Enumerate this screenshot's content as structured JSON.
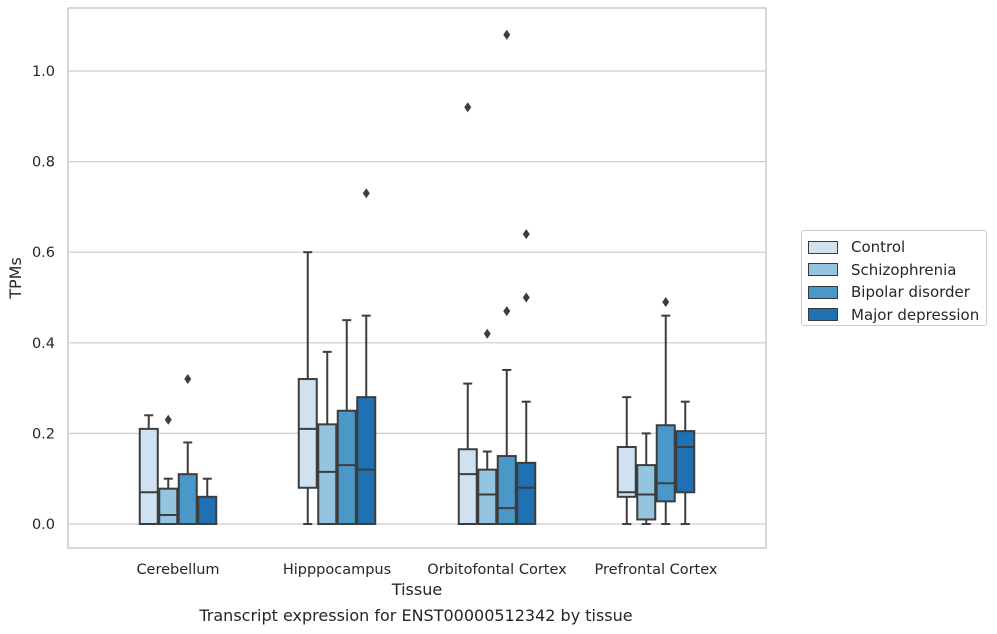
{
  "caption": "Transcript expression for ENST00000512342 by tissue",
  "chart_data": {
    "type": "box",
    "xlabel": "Tissue",
    "ylabel": "TPMs",
    "ylim": [
      -0.05,
      1.14
    ],
    "yticks": [
      0.0,
      0.2,
      0.4,
      0.6,
      0.8,
      1.0
    ],
    "ytick_labels": [
      "0.0",
      "0.2",
      "0.4",
      "0.6",
      "0.8",
      "1.0"
    ],
    "grid": "horizontal",
    "legend_position": "right",
    "categories": [
      "Cerebellum",
      "Hipppocampus",
      "Orbitofontal Cortex",
      "Prefrontal Cortex"
    ],
    "series": [
      {
        "name": "Control",
        "color": "#d0e1f2",
        "boxes": [
          {
            "min": 0.0,
            "q1": 0.0,
            "median": 0.07,
            "q3": 0.21,
            "max": 0.24,
            "outliers": []
          },
          {
            "min": 0.0,
            "q1": 0.08,
            "median": 0.21,
            "q3": 0.32,
            "max": 0.6,
            "outliers": []
          },
          {
            "min": 0.0,
            "q1": 0.0,
            "median": 0.11,
            "q3": 0.165,
            "max": 0.31,
            "outliers": [
              0.92
            ]
          },
          {
            "min": 0.0,
            "q1": 0.06,
            "median": 0.07,
            "q3": 0.17,
            "max": 0.28,
            "outliers": []
          }
        ]
      },
      {
        "name": "Schizophrenia",
        "color": "#94c4df",
        "boxes": [
          {
            "min": 0.0,
            "q1": 0.0,
            "median": 0.02,
            "q3": 0.078,
            "max": 0.1,
            "outliers": [
              0.23
            ]
          },
          {
            "min": 0.0,
            "q1": 0.0,
            "median": 0.115,
            "q3": 0.22,
            "max": 0.38,
            "outliers": []
          },
          {
            "min": 0.0,
            "q1": 0.0,
            "median": 0.065,
            "q3": 0.12,
            "max": 0.16,
            "outliers": [
              0.42
            ]
          },
          {
            "min": 0.0,
            "q1": 0.01,
            "median": 0.065,
            "q3": 0.13,
            "max": 0.2,
            "outliers": []
          }
        ]
      },
      {
        "name": "Bipolar disorder",
        "color": "#4a98c9",
        "boxes": [
          {
            "min": 0.0,
            "q1": 0.0,
            "median": 0.0,
            "q3": 0.11,
            "max": 0.18,
            "outliers": [
              0.32
            ]
          },
          {
            "min": 0.0,
            "q1": 0.0,
            "median": 0.13,
            "q3": 0.25,
            "max": 0.45,
            "outliers": []
          },
          {
            "min": 0.0,
            "q1": 0.0,
            "median": 0.035,
            "q3": 0.15,
            "max": 0.34,
            "outliers": [
              0.47,
              1.08
            ]
          },
          {
            "min": 0.0,
            "q1": 0.05,
            "median": 0.09,
            "q3": 0.218,
            "max": 0.46,
            "outliers": [
              0.49
            ]
          }
        ]
      },
      {
        "name": "Major depression",
        "color": "#2070b4",
        "boxes": [
          {
            "min": 0.0,
            "q1": 0.0,
            "median": 0.0,
            "q3": 0.06,
            "max": 0.1,
            "outliers": []
          },
          {
            "min": 0.0,
            "q1": 0.0,
            "median": 0.12,
            "q3": 0.28,
            "max": 0.46,
            "outliers": [
              0.73
            ]
          },
          {
            "min": 0.0,
            "q1": 0.0,
            "median": 0.08,
            "q3": 0.135,
            "max": 0.27,
            "outliers": [
              0.5,
              0.64
            ]
          },
          {
            "min": 0.0,
            "q1": 0.07,
            "median": 0.17,
            "q3": 0.205,
            "max": 0.27,
            "outliers": []
          }
        ]
      }
    ]
  }
}
